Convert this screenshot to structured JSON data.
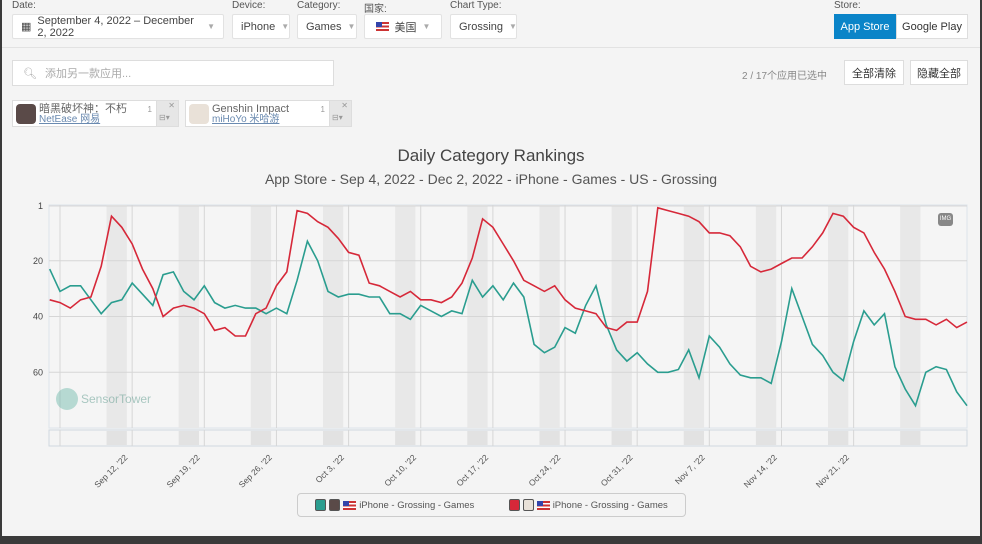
{
  "filters": {
    "date_label": "Date:",
    "date_value": "September 4, 2022 – December 2, 2022",
    "device_label": "Device:",
    "device_value": "iPhone",
    "category_label": "Category:",
    "category_value": "Games",
    "country_label": "国家:",
    "country_value": "美国",
    "chart_type_label": "Chart Type:",
    "chart_type_value": "Grossing",
    "store_label": "Store:",
    "store_options": [
      "App Store",
      "Google Play"
    ],
    "store_selected": "App Store"
  },
  "search": {
    "placeholder": "添加另一款应用..."
  },
  "selection": {
    "count_text": "2 / 17个应用已选中",
    "clear_all": "全部清除",
    "hide_all": "隐藏全部"
  },
  "apps": [
    {
      "name": "暗黑破坏神：不朽",
      "developer": "NetEase 网易",
      "badge": "1",
      "color": "#2a9d8f"
    },
    {
      "name": "Genshin Impact",
      "developer": "miHoYo 米哈游",
      "badge": "1",
      "color": "#d62839"
    }
  ],
  "chart_data": {
    "type": "line",
    "title": "Daily Category Rankings",
    "subtitle": "App Store - Sep 4, 2022 - Dec 2, 2022 - iPhone - Games - US - Grossing",
    "start_date": "2022-09-04",
    "days": 90,
    "ylim": [
      1,
      80
    ],
    "y_reversed": true,
    "y_ticks": [
      1,
      20,
      40,
      60
    ],
    "x_ticks": [
      {
        "day": 8,
        "label": "Sep 12, '22"
      },
      {
        "day": 15,
        "label": "Sep 19, '22"
      },
      {
        "day": 22,
        "label": "Sep 26, '22"
      },
      {
        "day": 29,
        "label": "Oct 3, '22"
      },
      {
        "day": 36,
        "label": "Oct 10, '22"
      },
      {
        "day": 43,
        "label": "Oct 17, '22"
      },
      {
        "day": 50,
        "label": "Oct 24, '22"
      },
      {
        "day": 57,
        "label": "Oct 31, '22"
      },
      {
        "day": 64,
        "label": "Nov 7, '22"
      },
      {
        "day": 71,
        "label": "Nov 14, '22"
      },
      {
        "day": 78,
        "label": "Nov 21, '22"
      }
    ],
    "series": [
      {
        "name": "iPhone - Grossing - Games",
        "app": "暗黑破坏神：不朽",
        "color": "#2a9d8f",
        "values": [
          23,
          31,
          29,
          29,
          34,
          39,
          35,
          34,
          28,
          32,
          36,
          25,
          24,
          31,
          34,
          29,
          35,
          37,
          36,
          37,
          37,
          39,
          37,
          39,
          27,
          13,
          20,
          31,
          33,
          32,
          32,
          33,
          33,
          39,
          39,
          41,
          36,
          38,
          40,
          38,
          39,
          27,
          33,
          29,
          34,
          28,
          33,
          50,
          53,
          51,
          44,
          46,
          36,
          29,
          43,
          52,
          56,
          53,
          57,
          60,
          60,
          59,
          52,
          62,
          47,
          51,
          57,
          61,
          62,
          62,
          64,
          49,
          30,
          40,
          50,
          54,
          60,
          63,
          49,
          38,
          43,
          39,
          58,
          66,
          72,
          60,
          58,
          59,
          67,
          72
        ]
      },
      {
        "name": "iPhone - Grossing - Games",
        "app": "Genshin Impact",
        "color": "#d62839",
        "values": [
          34,
          35,
          37,
          34,
          33,
          22,
          4,
          8,
          14,
          23,
          30,
          40,
          37,
          36,
          37,
          39,
          45,
          44,
          47,
          47,
          39,
          37,
          29,
          24,
          2,
          3,
          6,
          8,
          12,
          17,
          18,
          28,
          29,
          31,
          33,
          31,
          34,
          34,
          35,
          33,
          28,
          19,
          5,
          8,
          14,
          20,
          27,
          29,
          31,
          29,
          34,
          37,
          38,
          39,
          44,
          45,
          42,
          42,
          31,
          1,
          2,
          3,
          4,
          6,
          10,
          10,
          11,
          15,
          22,
          24,
          23,
          21,
          19,
          19,
          15,
          10,
          3,
          4,
          8,
          10,
          17,
          23,
          31,
          40,
          41,
          41,
          43,
          41,
          44,
          42
        ]
      }
    ],
    "legend_position": "bottom",
    "watermark": "SensorTower",
    "export_label": "IMG"
  }
}
